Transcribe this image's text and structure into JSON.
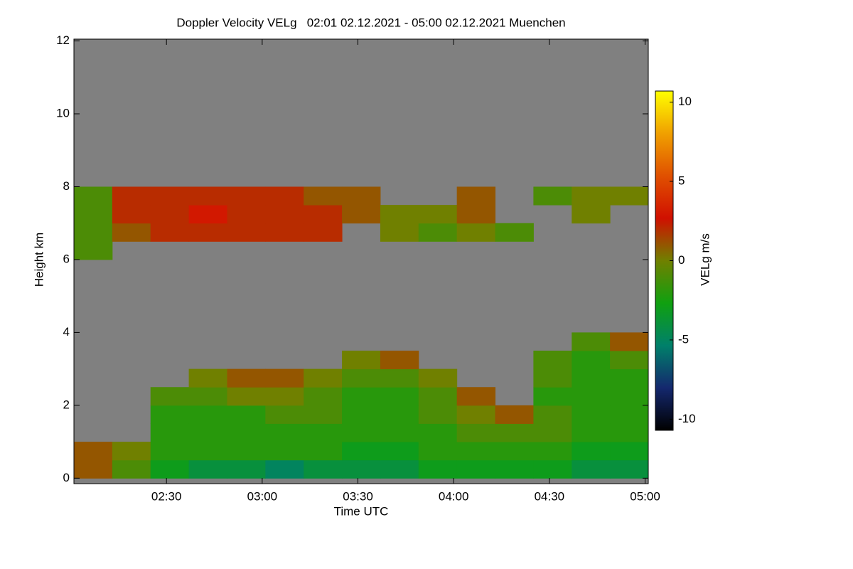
{
  "chart_data": {
    "type": "heatmap",
    "title": "Doppler Velocity VELg   02:01 02.12.2021 - 05:00 02.12.2021 Muenchen",
    "xlabel": "Time UTC",
    "ylabel": "Height km",
    "colorbar_label": "VELg m/s",
    "xlim": [
      121,
      301
    ],
    "xticks": [
      {
        "value": 150,
        "label": "02:30"
      },
      {
        "value": 180,
        "label": "03:00"
      },
      {
        "value": 210,
        "label": "03:30"
      },
      {
        "value": 240,
        "label": "04:00"
      },
      {
        "value": 270,
        "label": "04:30"
      },
      {
        "value": 300,
        "label": "05:00"
      }
    ],
    "ylim": [
      -0.15,
      12.05
    ],
    "yticks": [
      0,
      2,
      4,
      6,
      8,
      10,
      12
    ],
    "x_bins": [
      121,
      133,
      145,
      157,
      169,
      181,
      193,
      205,
      217,
      229,
      241,
      253,
      265,
      277,
      289,
      301
    ],
    "y_bins": [
      0,
      0.5,
      1,
      1.5,
      2,
      2.5,
      3,
      3.5,
      4,
      4.5,
      5,
      5.5,
      6,
      6.5,
      7,
      7.5,
      8
    ],
    "z": [
      [
        1,
        -1,
        -3,
        -4,
        -4,
        -5,
        -4,
        -4,
        -4,
        -3,
        -3,
        -3,
        -3,
        -4,
        -4
      ],
      [
        1,
        0,
        -2,
        -2,
        -2,
        -2,
        -2,
        -3,
        -3,
        -2,
        -2,
        -2,
        -2,
        -3,
        -3
      ],
      [
        null,
        null,
        -2,
        -2,
        -2,
        -2,
        -2,
        -2,
        -2,
        -2,
        -1,
        -1,
        -1,
        -2,
        -2
      ],
      [
        null,
        null,
        -2,
        -2,
        -2,
        -1,
        -1,
        -2,
        -2,
        -1,
        0,
        1,
        -1,
        -2,
        -2
      ],
      [
        null,
        null,
        -1,
        -1,
        0,
        0,
        -1,
        -2,
        -2,
        -1,
        1,
        null,
        -2,
        -2,
        -2
      ],
      [
        null,
        null,
        null,
        0,
        1,
        1,
        0,
        -1,
        -1,
        0,
        null,
        null,
        -1,
        -2,
        -2
      ],
      [
        null,
        null,
        null,
        null,
        null,
        null,
        null,
        0,
        1,
        null,
        null,
        null,
        -1,
        -2,
        -1
      ],
      [
        null,
        null,
        null,
        null,
        null,
        null,
        null,
        null,
        null,
        null,
        null,
        null,
        null,
        -1,
        1
      ],
      [
        null,
        null,
        null,
        null,
        null,
        null,
        null,
        null,
        null,
        null,
        null,
        null,
        null,
        null,
        null
      ],
      [
        null,
        null,
        null,
        null,
        null,
        null,
        null,
        null,
        null,
        null,
        null,
        null,
        null,
        null,
        null
      ],
      [
        null,
        null,
        null,
        null,
        null,
        null,
        null,
        null,
        null,
        null,
        null,
        null,
        null,
        null,
        null
      ],
      [
        null,
        null,
        null,
        null,
        null,
        null,
        null,
        null,
        null,
        null,
        null,
        null,
        null,
        null,
        null
      ],
      [
        -1,
        null,
        null,
        null,
        null,
        null,
        null,
        null,
        null,
        null,
        null,
        null,
        null,
        null,
        null
      ],
      [
        -1,
        1,
        2,
        2,
        2,
        2,
        2,
        null,
        0,
        -1,
        0,
        -1,
        null,
        null,
        null
      ],
      [
        -1,
        2,
        2,
        3,
        2,
        2,
        2,
        1,
        0,
        0,
        1,
        null,
        null,
        0,
        null
      ],
      [
        -1,
        2,
        2,
        2,
        2,
        2,
        1,
        1,
        null,
        null,
        1,
        null,
        -1,
        0,
        0
      ]
    ],
    "background_color": "#808080",
    "clim": [
      -10.7,
      10.7
    ],
    "cticks": [
      10,
      5,
      0,
      -5,
      -10
    ],
    "colormap": [
      "#000000",
      "#14286e",
      "#00806a",
      "#10a010",
      "#708000",
      "#d01000",
      "#e05000",
      "#f0a000",
      "#ffff00"
    ]
  }
}
